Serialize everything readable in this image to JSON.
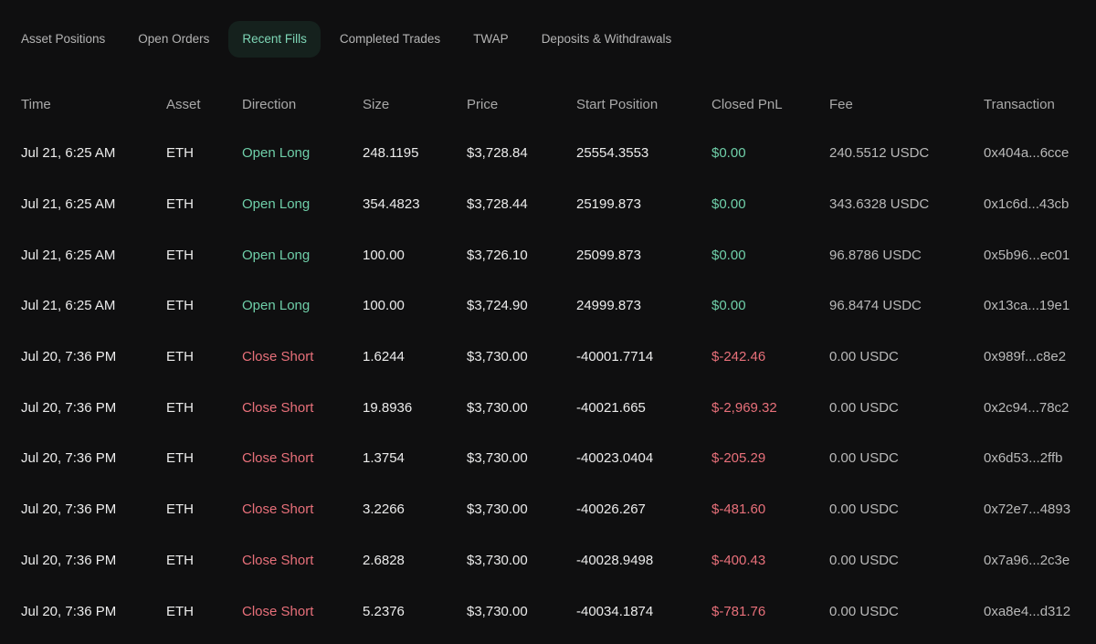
{
  "colors": {
    "background": "#0f0f10",
    "positive": "#6fcfa9",
    "negative": "#e8707a",
    "active_tab_bg": "#15211d"
  },
  "tabs": [
    {
      "label": "Asset Positions",
      "active": false
    },
    {
      "label": "Open Orders",
      "active": false
    },
    {
      "label": "Recent Fills",
      "active": true
    },
    {
      "label": "Completed Trades",
      "active": false
    },
    {
      "label": "TWAP",
      "active": false
    },
    {
      "label": "Deposits & Withdrawals",
      "active": false
    }
  ],
  "table": {
    "columns": [
      "Time",
      "Asset",
      "Direction",
      "Size",
      "Price",
      "Start Position",
      "Closed PnL",
      "Fee",
      "Transaction"
    ],
    "rows": [
      {
        "time": "Jul 21, 6:25 AM",
        "asset": "ETH",
        "direction": "Open Long",
        "side": "long",
        "size": "248.1195",
        "price": "$3,728.84",
        "start_position": "25554.3553",
        "closed_pnl": "$0.00",
        "fee": "240.5512 USDC",
        "transaction": "0x404a...6cce"
      },
      {
        "time": "Jul 21, 6:25 AM",
        "asset": "ETH",
        "direction": "Open Long",
        "side": "long",
        "size": "354.4823",
        "price": "$3,728.44",
        "start_position": "25199.873",
        "closed_pnl": "$0.00",
        "fee": "343.6328 USDC",
        "transaction": "0x1c6d...43cb"
      },
      {
        "time": "Jul 21, 6:25 AM",
        "asset": "ETH",
        "direction": "Open Long",
        "side": "long",
        "size": "100.00",
        "price": "$3,726.10",
        "start_position": "25099.873",
        "closed_pnl": "$0.00",
        "fee": "96.8786 USDC",
        "transaction": "0x5b96...ec01"
      },
      {
        "time": "Jul 21, 6:25 AM",
        "asset": "ETH",
        "direction": "Open Long",
        "side": "long",
        "size": "100.00",
        "price": "$3,724.90",
        "start_position": "24999.873",
        "closed_pnl": "$0.00",
        "fee": "96.8474 USDC",
        "transaction": "0x13ca...19e1"
      },
      {
        "time": "Jul 20, 7:36 PM",
        "asset": "ETH",
        "direction": "Close Short",
        "side": "short",
        "size": "1.6244",
        "price": "$3,730.00",
        "start_position": "-40001.7714",
        "closed_pnl": "$-242.46",
        "fee": "0.00 USDC",
        "transaction": "0x989f...c8e2"
      },
      {
        "time": "Jul 20, 7:36 PM",
        "asset": "ETH",
        "direction": "Close Short",
        "side": "short",
        "size": "19.8936",
        "price": "$3,730.00",
        "start_position": "-40021.665",
        "closed_pnl": "$-2,969.32",
        "fee": "0.00 USDC",
        "transaction": "0x2c94...78c2"
      },
      {
        "time": "Jul 20, 7:36 PM",
        "asset": "ETH",
        "direction": "Close Short",
        "side": "short",
        "size": "1.3754",
        "price": "$3,730.00",
        "start_position": "-40023.0404",
        "closed_pnl": "$-205.29",
        "fee": "0.00 USDC",
        "transaction": "0x6d53...2ffb"
      },
      {
        "time": "Jul 20, 7:36 PM",
        "asset": "ETH",
        "direction": "Close Short",
        "side": "short",
        "size": "3.2266",
        "price": "$3,730.00",
        "start_position": "-40026.267",
        "closed_pnl": "$-481.60",
        "fee": "0.00 USDC",
        "transaction": "0x72e7...4893"
      },
      {
        "time": "Jul 20, 7:36 PM",
        "asset": "ETH",
        "direction": "Close Short",
        "side": "short",
        "size": "2.6828",
        "price": "$3,730.00",
        "start_position": "-40028.9498",
        "closed_pnl": "$-400.43",
        "fee": "0.00 USDC",
        "transaction": "0x7a96...2c3e"
      },
      {
        "time": "Jul 20, 7:36 PM",
        "asset": "ETH",
        "direction": "Close Short",
        "side": "short",
        "size": "5.2376",
        "price": "$3,730.00",
        "start_position": "-40034.1874",
        "closed_pnl": "$-781.76",
        "fee": "0.00 USDC",
        "transaction": "0xa8e4...d312"
      }
    ]
  }
}
